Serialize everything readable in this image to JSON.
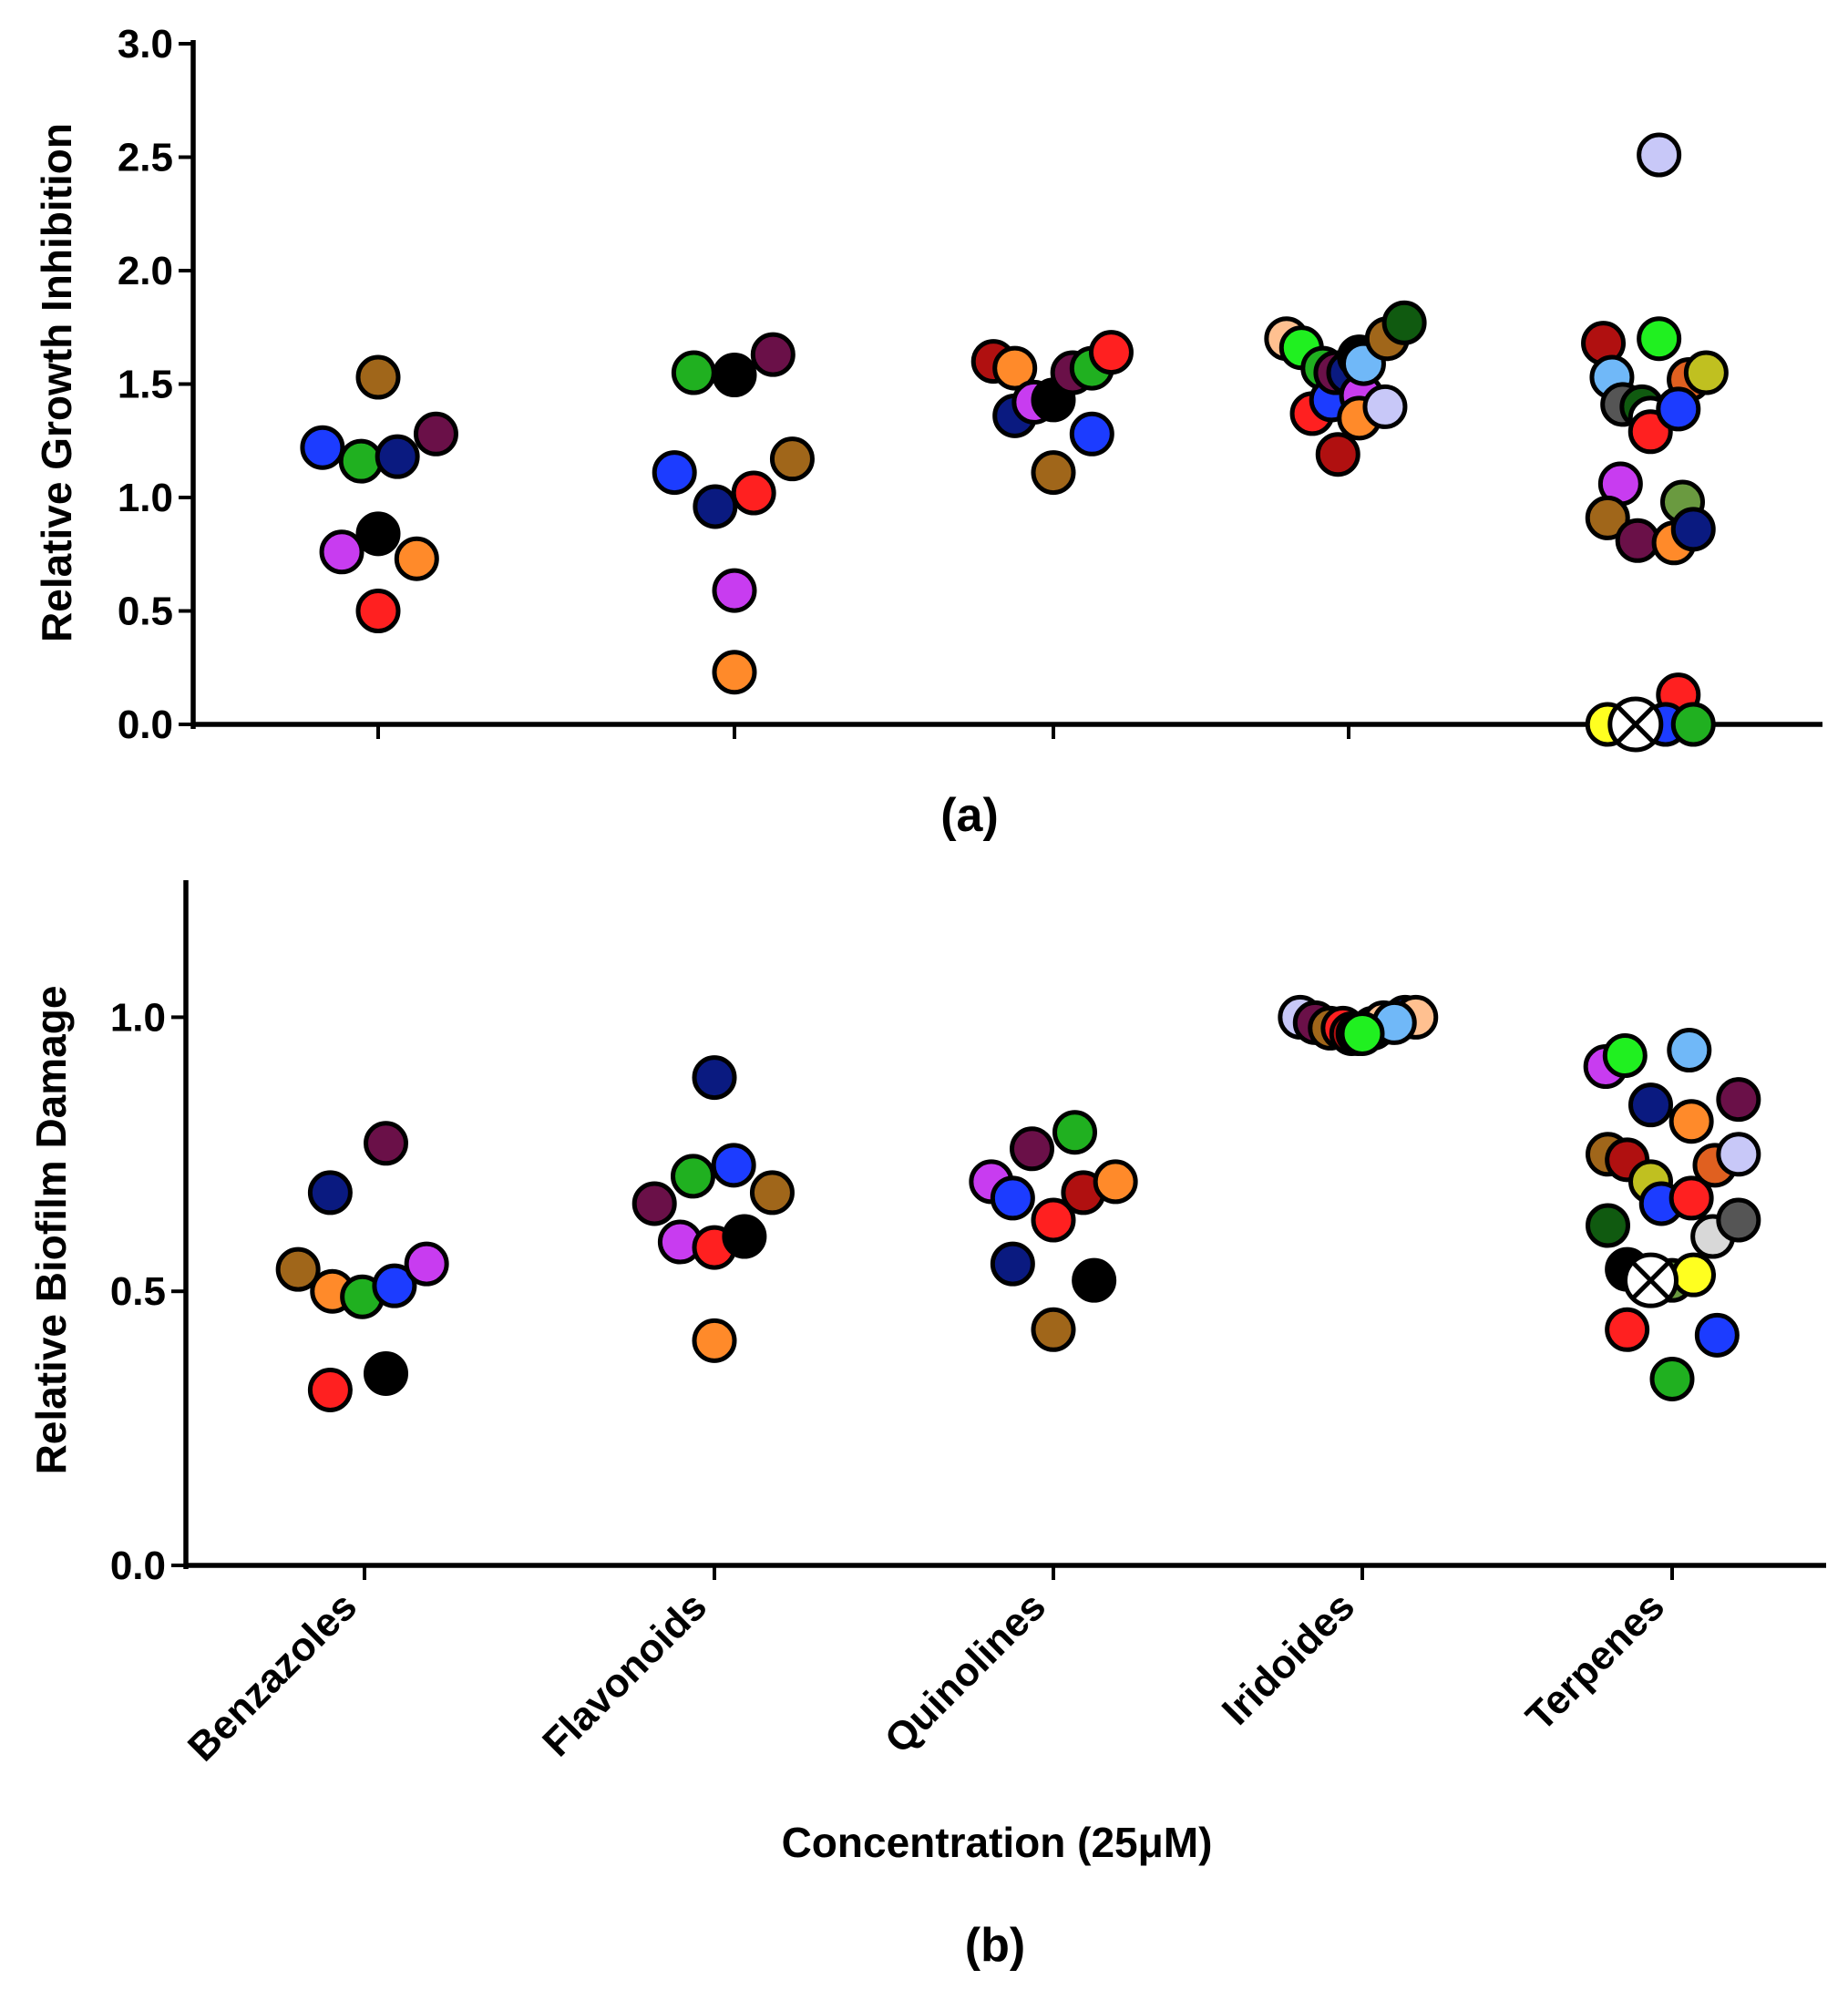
{
  "chart_data": [
    {
      "type": "scatter",
      "panel_label": "(a)",
      "ylabel": "Relative Growth Inhibition",
      "xlabel": "",
      "ylim": [
        0,
        3.0
      ],
      "yticks": [
        "0.0",
        "0.5",
        "1.0",
        "1.5",
        "2.0",
        "2.5",
        "3.0"
      ],
      "categories": [
        "Benzazoles",
        "Flavonoids",
        "Quinolines",
        "Iridoides",
        "Terpenes"
      ],
      "points": [
        {
          "category": "Benzazoles",
          "offset": -0.26,
          "y": 1.22,
          "color": "#1c3cff"
        },
        {
          "category": "Benzazoles",
          "offset": -0.17,
          "y": 0.76,
          "color": "#c83cf0"
        },
        {
          "category": "Benzazoles",
          "offset": -0.08,
          "y": 1.16,
          "color": "#20b020"
        },
        {
          "category": "Benzazoles",
          "offset": 0.0,
          "y": 1.53,
          "color": "#a0661a"
        },
        {
          "category": "Benzazoles",
          "offset": 0.0,
          "y": 0.84,
          "color": "#000000"
        },
        {
          "category": "Benzazoles",
          "offset": 0.0,
          "y": 0.5,
          "color": "#ff2020"
        },
        {
          "category": "Benzazoles",
          "offset": 0.09,
          "y": 1.18,
          "color": "#0a1a80"
        },
        {
          "category": "Benzazoles",
          "offset": 0.18,
          "y": 0.73,
          "color": "#ff8a2a"
        },
        {
          "category": "Benzazoles",
          "offset": 0.27,
          "y": 1.28,
          "color": "#6a1048"
        },
        {
          "category": "Flavonoids",
          "offset": -0.28,
          "y": 1.11,
          "color": "#1c3cff"
        },
        {
          "category": "Flavonoids",
          "offset": -0.19,
          "y": 1.55,
          "color": "#20b020"
        },
        {
          "category": "Flavonoids",
          "offset": -0.09,
          "y": 0.96,
          "color": "#0a1a80"
        },
        {
          "category": "Flavonoids",
          "offset": 0.0,
          "y": 1.54,
          "color": "#000000"
        },
        {
          "category": "Flavonoids",
          "offset": 0.0,
          "y": 0.59,
          "color": "#c83cf0"
        },
        {
          "category": "Flavonoids",
          "offset": 0.0,
          "y": 0.23,
          "color": "#ff8a2a"
        },
        {
          "category": "Flavonoids",
          "offset": 0.09,
          "y": 1.02,
          "color": "#ff2020"
        },
        {
          "category": "Flavonoids",
          "offset": 0.18,
          "y": 1.63,
          "color": "#6a1048"
        },
        {
          "category": "Flavonoids",
          "offset": 0.27,
          "y": 1.17,
          "color": "#a0661a"
        },
        {
          "category": "Quinolines",
          "offset": -0.28,
          "y": 1.6,
          "color": "#b01010"
        },
        {
          "category": "Quinolines",
          "offset": -0.18,
          "y": 1.57,
          "color": "#ff8a2a"
        },
        {
          "category": "Quinolines",
          "offset": -0.18,
          "y": 1.36,
          "color": "#0a1a80"
        },
        {
          "category": "Quinolines",
          "offset": -0.09,
          "y": 1.42,
          "color": "#c83cf0"
        },
        {
          "category": "Quinolines",
          "offset": 0.0,
          "y": 1.43,
          "color": "#000000"
        },
        {
          "category": "Quinolines",
          "offset": 0.0,
          "y": 1.11,
          "color": "#a0661a"
        },
        {
          "category": "Quinolines",
          "offset": 0.09,
          "y": 1.55,
          "color": "#6a1048"
        },
        {
          "category": "Quinolines",
          "offset": 0.18,
          "y": 1.57,
          "color": "#20b020"
        },
        {
          "category": "Quinolines",
          "offset": 0.18,
          "y": 1.28,
          "color": "#1c3cff"
        },
        {
          "category": "Quinolines",
          "offset": 0.27,
          "y": 1.64,
          "color": "#ff2020"
        },
        {
          "category": "Iridoides",
          "offset": -0.29,
          "y": 1.7,
          "color": "#ffc090"
        },
        {
          "category": "Iridoides",
          "offset": -0.22,
          "y": 1.66,
          "color": "#20f020"
        },
        {
          "category": "Iridoides",
          "offset": -0.17,
          "y": 1.37,
          "color": "#ff2020"
        },
        {
          "category": "Iridoides",
          "offset": -0.12,
          "y": 1.57,
          "color": "#20b020"
        },
        {
          "category": "Iridoides",
          "offset": -0.08,
          "y": 1.43,
          "color": "#1c3cff"
        },
        {
          "category": "Iridoides",
          "offset": -0.06,
          "y": 1.55,
          "color": "#6a1048"
        },
        {
          "category": "Iridoides",
          "offset": -0.05,
          "y": 1.19,
          "color": "#b01010"
        },
        {
          "category": "Iridoides",
          "offset": 0.0,
          "y": 1.55,
          "color": "#0a1a80"
        },
        {
          "category": "Iridoides",
          "offset": 0.05,
          "y": 1.62,
          "color": "#000000"
        },
        {
          "category": "Iridoides",
          "offset": 0.06,
          "y": 1.45,
          "color": "#c83cf0"
        },
        {
          "category": "Iridoides",
          "offset": 0.05,
          "y": 1.35,
          "color": "#ff8a2a"
        },
        {
          "category": "Iridoides",
          "offset": 0.07,
          "y": 1.59,
          "color": "#70b8f8"
        },
        {
          "category": "Iridoides",
          "offset": 0.18,
          "y": 1.7,
          "color": "#a0661a"
        },
        {
          "category": "Iridoides",
          "offset": 0.17,
          "y": 1.4,
          "color": "#c8c8f8"
        },
        {
          "category": "Iridoides",
          "offset": 0.26,
          "y": 1.77,
          "color": "#105a10"
        },
        {
          "category": "Terpenes",
          "offset": -0.27,
          "y": 1.68,
          "color": "#b01010"
        },
        {
          "category": "Terpenes",
          "offset": -0.23,
          "y": 1.53,
          "color": "#70b8f8"
        },
        {
          "category": "Terpenes",
          "offset": -0.18,
          "y": 1.41,
          "color": "#555555"
        },
        {
          "category": "Terpenes",
          "offset": -0.09,
          "y": 1.4,
          "color": "#105a10"
        },
        {
          "category": "Terpenes",
          "offset": -0.19,
          "y": 1.06,
          "color": "#c83cf0"
        },
        {
          "category": "Terpenes",
          "offset": -0.25,
          "y": 0.91,
          "color": "#a0661a"
        },
        {
          "category": "Terpenes",
          "offset": -0.11,
          "y": 0.81,
          "color": "#6a1048"
        },
        {
          "category": "Terpenes",
          "offset": -0.01,
          "y": 2.51,
          "color": "#c8c8f8"
        },
        {
          "category": "Terpenes",
          "offset": -0.01,
          "y": 1.7,
          "color": "#20f020"
        },
        {
          "category": "Terpenes",
          "offset": -0.05,
          "y": 1.35,
          "color": "#ffffff"
        },
        {
          "category": "Terpenes",
          "offset": -0.05,
          "y": 1.29,
          "color": "#ff2020"
        },
        {
          "category": "Terpenes",
          "offset": 0.06,
          "y": 0.8,
          "color": "#ff8a2a"
        },
        {
          "category": "Terpenes",
          "offset": 0.13,
          "y": 1.52,
          "color": "#e06020"
        },
        {
          "category": "Terpenes",
          "offset": 0.21,
          "y": 1.55,
          "color": "#c0c020"
        },
        {
          "category": "Terpenes",
          "offset": 0.08,
          "y": 1.39,
          "color": "#1c3cff"
        },
        {
          "category": "Terpenes",
          "offset": 0.1,
          "y": 0.98,
          "color": "#6a9a40"
        },
        {
          "category": "Terpenes",
          "offset": 0.15,
          "y": 0.86,
          "color": "#0a1a80"
        },
        {
          "category": "Terpenes",
          "offset": 0.08,
          "y": 0.13,
          "color": "#ff2020"
        },
        {
          "category": "Terpenes",
          "offset": -0.25,
          "y": 0.0,
          "color": "#ffff20"
        },
        {
          "category": "Terpenes",
          "offset": 0.02,
          "y": 0.0,
          "color": "#1c3cff"
        },
        {
          "category": "Terpenes",
          "offset": 0.15,
          "y": 0.0,
          "color": "#20b020"
        },
        {
          "category": "Terpenes",
          "offset": -0.12,
          "y": 0.0,
          "color": "#ffffff",
          "marker": "x"
        }
      ]
    },
    {
      "type": "scatter",
      "panel_label": "(b)",
      "ylabel": "Relative Biofilm Damage",
      "xlabel": "Concentration (25μM)",
      "ylim": [
        0,
        1.25
      ],
      "yticks": [
        "0.0",
        "0.5",
        "1.0"
      ],
      "categories": [
        "Benzazoles",
        "Flavonoids",
        "Quinolines",
        "Iridoides",
        "Terpenes"
      ],
      "points": [
        {
          "category": "Benzazoles",
          "offset": -0.31,
          "y": 0.54,
          "color": "#a0661a"
        },
        {
          "category": "Benzazoles",
          "offset": -0.16,
          "y": 0.68,
          "color": "#0a1a80"
        },
        {
          "category": "Benzazoles",
          "offset": -0.16,
          "y": 0.32,
          "color": "#ff2020"
        },
        {
          "category": "Benzazoles",
          "offset": -0.15,
          "y": 0.5,
          "color": "#ff8a2a"
        },
        {
          "category": "Benzazoles",
          "offset": -0.01,
          "y": 0.49,
          "color": "#20b020"
        },
        {
          "category": "Benzazoles",
          "offset": 0.1,
          "y": 0.77,
          "color": "#6a1048"
        },
        {
          "category": "Benzazoles",
          "offset": 0.1,
          "y": 0.35,
          "color": "#000000"
        },
        {
          "category": "Benzazoles",
          "offset": 0.14,
          "y": 0.51,
          "color": "#1c3cff"
        },
        {
          "category": "Benzazoles",
          "offset": 0.29,
          "y": 0.55,
          "color": "#c83cf0"
        },
        {
          "category": "Flavonoids",
          "offset": -0.28,
          "y": 0.66,
          "color": "#6a1048"
        },
        {
          "category": "Flavonoids",
          "offset": -0.16,
          "y": 0.59,
          "color": "#c83cf0"
        },
        {
          "category": "Flavonoids",
          "offset": -0.1,
          "y": 0.71,
          "color": "#20b020"
        },
        {
          "category": "Flavonoids",
          "offset": 0.0,
          "y": 0.89,
          "color": "#0a1a80"
        },
        {
          "category": "Flavonoids",
          "offset": 0.0,
          "y": 0.58,
          "color": "#ff2020"
        },
        {
          "category": "Flavonoids",
          "offset": 0.0,
          "y": 0.41,
          "color": "#ff8a2a"
        },
        {
          "category": "Flavonoids",
          "offset": 0.09,
          "y": 0.73,
          "color": "#1c3cff"
        },
        {
          "category": "Flavonoids",
          "offset": 0.14,
          "y": 0.6,
          "color": "#000000"
        },
        {
          "category": "Flavonoids",
          "offset": 0.27,
          "y": 0.68,
          "color": "#a0661a"
        },
        {
          "category": "Quinolines",
          "offset": -0.29,
          "y": 0.7,
          "color": "#c83cf0"
        },
        {
          "category": "Quinolines",
          "offset": -0.19,
          "y": 0.67,
          "color": "#1c3cff"
        },
        {
          "category": "Quinolines",
          "offset": -0.19,
          "y": 0.55,
          "color": "#0a1a80"
        },
        {
          "category": "Quinolines",
          "offset": -0.1,
          "y": 0.76,
          "color": "#6a1048"
        },
        {
          "category": "Quinolines",
          "offset": 0.0,
          "y": 0.63,
          "color": "#ff2020"
        },
        {
          "category": "Quinolines",
          "offset": 0.0,
          "y": 0.43,
          "color": "#a0661a"
        },
        {
          "category": "Quinolines",
          "offset": 0.1,
          "y": 0.79,
          "color": "#20b020"
        },
        {
          "category": "Quinolines",
          "offset": 0.14,
          "y": 0.68,
          "color": "#b01010"
        },
        {
          "category": "Quinolines",
          "offset": 0.19,
          "y": 0.52,
          "color": "#000000"
        },
        {
          "category": "Quinolines",
          "offset": 0.29,
          "y": 0.7,
          "color": "#ff8a2a"
        },
        {
          "category": "Iridoides",
          "offset": -0.29,
          "y": 1.0,
          "color": "#c8c8f8"
        },
        {
          "category": "Iridoides",
          "offset": -0.22,
          "y": 0.99,
          "color": "#6a1048"
        },
        {
          "category": "Iridoides",
          "offset": -0.15,
          "y": 0.98,
          "color": "#a0661a"
        },
        {
          "category": "Iridoides",
          "offset": -0.09,
          "y": 0.98,
          "color": "#ff2020"
        },
        {
          "category": "Iridoides",
          "offset": -0.05,
          "y": 0.97,
          "color": "#b01010"
        },
        {
          "category": "Iridoides",
          "offset": -0.02,
          "y": 0.97,
          "color": "#105a10"
        },
        {
          "category": "Iridoides",
          "offset": 0.05,
          "y": 0.98,
          "color": "#a0661a"
        },
        {
          "category": "Iridoides",
          "offset": 0.1,
          "y": 0.99,
          "color": "#ffc090"
        },
        {
          "category": "Iridoides",
          "offset": 0.2,
          "y": 1.0,
          "color": "#0a1a80"
        },
        {
          "category": "Iridoides",
          "offset": 0.25,
          "y": 1.0,
          "color": "#ffc090"
        },
        {
          "category": "Iridoides",
          "offset": 0.15,
          "y": 0.99,
          "color": "#70b8f8"
        },
        {
          "category": "Iridoides",
          "offset": 0.0,
          "y": 0.97,
          "color": "#20f020"
        },
        {
          "category": "Terpenes",
          "offset": -0.31,
          "y": 0.91,
          "color": "#c83cf0"
        },
        {
          "category": "Terpenes",
          "offset": -0.22,
          "y": 0.93,
          "color": "#20f020"
        },
        {
          "category": "Terpenes",
          "offset": -0.3,
          "y": 0.75,
          "color": "#a0661a"
        },
        {
          "category": "Terpenes",
          "offset": -0.21,
          "y": 0.74,
          "color": "#b01010"
        },
        {
          "category": "Terpenes",
          "offset": -0.3,
          "y": 0.62,
          "color": "#105a10"
        },
        {
          "category": "Terpenes",
          "offset": -0.21,
          "y": 0.54,
          "color": "#000000"
        },
        {
          "category": "Terpenes",
          "offset": -0.21,
          "y": 0.43,
          "color": "#ff2020"
        },
        {
          "category": "Terpenes",
          "offset": -0.1,
          "y": 0.84,
          "color": "#0a1a80"
        },
        {
          "category": "Terpenes",
          "offset": -0.1,
          "y": 0.7,
          "color": "#c0c020"
        },
        {
          "category": "Terpenes",
          "offset": -0.05,
          "y": 0.66,
          "color": "#1c3cff"
        },
        {
          "category": "Terpenes",
          "offset": 0.0,
          "y": 0.52,
          "color": "#6a9a40"
        },
        {
          "category": "Terpenes",
          "offset": 0.0,
          "y": 0.34,
          "color": "#20b020"
        },
        {
          "category": "Terpenes",
          "offset": 0.08,
          "y": 0.94,
          "color": "#70b8f8"
        },
        {
          "category": "Terpenes",
          "offset": 0.09,
          "y": 0.81,
          "color": "#ff8a2a"
        },
        {
          "category": "Terpenes",
          "offset": 0.09,
          "y": 0.67,
          "color": "#ff2020"
        },
        {
          "category": "Terpenes",
          "offset": 0.1,
          "y": 0.53,
          "color": "#ffff20"
        },
        {
          "category": "Terpenes",
          "offset": 0.2,
          "y": 0.73,
          "color": "#e06020"
        },
        {
          "category": "Terpenes",
          "offset": 0.19,
          "y": 0.6,
          "color": "#d8d8d8"
        },
        {
          "category": "Terpenes",
          "offset": 0.21,
          "y": 0.42,
          "color": "#1c3cff"
        },
        {
          "category": "Terpenes",
          "offset": 0.31,
          "y": 0.85,
          "color": "#6a1048"
        },
        {
          "category": "Terpenes",
          "offset": 0.31,
          "y": 0.75,
          "color": "#c8c8f8"
        },
        {
          "category": "Terpenes",
          "offset": 0.31,
          "y": 0.63,
          "color": "#555555"
        },
        {
          "category": "Terpenes",
          "offset": -0.1,
          "y": 0.52,
          "color": "#ffffff",
          "marker": "x"
        }
      ]
    }
  ]
}
